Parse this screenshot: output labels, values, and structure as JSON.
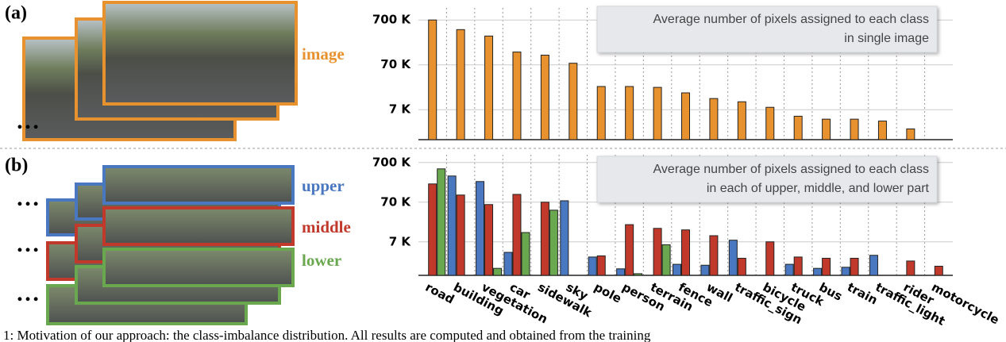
{
  "chart_data": [
    {
      "type": "bar",
      "panel_label": "(a)",
      "log_y": true,
      "annotation": [
        "Average number of pixels assigned to each class",
        "in single image"
      ],
      "ylim": [
        1500,
        1300000
      ],
      "yticks": [
        {
          "value": 7000,
          "label": "7 K"
        },
        {
          "value": 70000,
          "label": "70 K"
        },
        {
          "value": 700000,
          "label": "700 K"
        }
      ],
      "grid": true,
      "series": [
        {
          "name": "image",
          "color": "#e8922f",
          "values": [
            700000,
            427000,
            307000,
            135000,
            115000,
            76000,
            23000,
            23000,
            22000,
            16600,
            12400,
            10500,
            7900,
            5000,
            4300,
            4300,
            3900,
            2600,
            null
          ]
        }
      ]
    },
    {
      "type": "bar",
      "panel_label": "(b)",
      "log_y": true,
      "annotation": [
        "Average number of pixels assigned to each class",
        "in each of upper, middle, and lower part"
      ],
      "categories": [
        "road",
        "building",
        "vegetation",
        "car",
        "sidewalk",
        "sky",
        "pole",
        "person",
        "terrain",
        "fence",
        "wall",
        "traffic_sign",
        "bicycle",
        "truck",
        "bus",
        "train",
        "traffic_light",
        "rider",
        "motorcycle"
      ],
      "ylim": [
        1000,
        1100000
      ],
      "yticks": [
        {
          "value": 7000,
          "label": "7 K"
        },
        {
          "value": 70000,
          "label": "70 K"
        },
        {
          "value": 700000,
          "label": "700 K"
        }
      ],
      "grid": true,
      "series": [
        {
          "name": "upper",
          "color": "#4a78c0",
          "values": [
            null,
            320000,
            232000,
            3800,
            null,
            76000,
            2900,
            1460,
            null,
            1900,
            1800,
            7700,
            null,
            1900,
            1500,
            1600,
            3200,
            null,
            null
          ]
        },
        {
          "name": "middle",
          "color": "#c0392b",
          "values": [
            202000,
            106000,
            61000,
            110000,
            70000,
            null,
            3100,
            19000,
            15300,
            14000,
            10000,
            2700,
            7000,
            2900,
            2700,
            2700,
            null,
            2300,
            1700
          ]
        },
        {
          "name": "lower",
          "color": "#6aa84f",
          "values": [
            484000,
            null,
            1500,
            12000,
            44000,
            null,
            null,
            1100,
            5900,
            null,
            null,
            null,
            null,
            null,
            null,
            null,
            null,
            null,
            null
          ]
        }
      ]
    }
  ],
  "caption": "1: Motivation of our approach: the class-imbalance distribution. All results are computed and obtained from the training"
}
